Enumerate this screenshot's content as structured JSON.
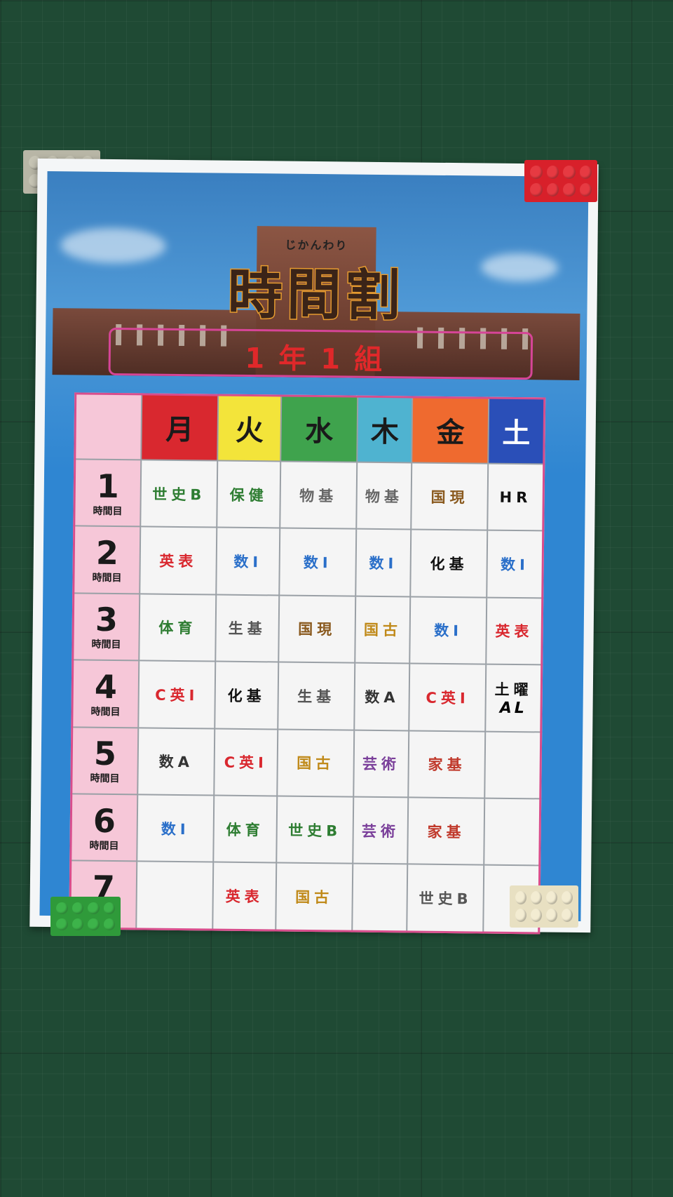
{
  "poster": {
    "hiragana": "じかんわり",
    "title": "時間割",
    "class_label": "1年1組"
  },
  "days": [
    {
      "label": "月",
      "color": "#d9282f",
      "text_color": "#1a1a1a"
    },
    {
      "label": "火",
      "color": "#f3e43a",
      "text_color": "#1a1a1a"
    },
    {
      "label": "水",
      "color": "#3fa34d",
      "text_color": "#1a1a1a"
    },
    {
      "label": "木",
      "color": "#4fb3d0",
      "text_color": "#1a1a1a"
    },
    {
      "label": "金",
      "color": "#ef6a2f",
      "text_color": "#1a1a1a"
    },
    {
      "label": "土",
      "color": "#2a4fb8",
      "text_color": "#ffffff"
    }
  ],
  "period_suffix": "時間目",
  "periods": [
    {
      "num": "1",
      "cells": [
        {
          "text": "世史B",
          "color": "#2e7d32"
        },
        {
          "text": "保健",
          "color": "#2e7d32"
        },
        {
          "text": "物基",
          "color": "#666666"
        },
        {
          "text": "物基",
          "color": "#666666"
        },
        {
          "text": "国現",
          "color": "#8a5a1f"
        },
        {
          "text": "HR",
          "color": "#111111"
        }
      ]
    },
    {
      "num": "2",
      "cells": [
        {
          "text": "英表",
          "color": "#d9282f"
        },
        {
          "text": "数I",
          "color": "#2a6fc9"
        },
        {
          "text": "数I",
          "color": "#2a6fc9"
        },
        {
          "text": "数I",
          "color": "#2a6fc9"
        },
        {
          "text": "化基",
          "color": "#111111"
        },
        {
          "text": "数I",
          "color": "#2a6fc9"
        }
      ]
    },
    {
      "num": "3",
      "cells": [
        {
          "text": "体育",
          "color": "#2e7d32"
        },
        {
          "text": "生基",
          "color": "#555555"
        },
        {
          "text": "国現",
          "color": "#8a5a1f"
        },
        {
          "text": "国古",
          "color": "#c08a1a"
        },
        {
          "text": "数I",
          "color": "#2a6fc9"
        },
        {
          "text": "英表",
          "color": "#d9282f"
        }
      ]
    },
    {
      "num": "4",
      "cells": [
        {
          "text": "C英I",
          "color": "#d9282f"
        },
        {
          "text": "化基",
          "color": "#111111"
        },
        {
          "text": "生基",
          "color": "#555555"
        },
        {
          "text": "数A",
          "color": "#333333"
        },
        {
          "text": "C英I",
          "color": "#d9282f"
        },
        {
          "text": "土曜",
          "color": "#111111",
          "extra": "AL"
        }
      ]
    },
    {
      "num": "5",
      "cells": [
        {
          "text": "数A",
          "color": "#333333"
        },
        {
          "text": "C英I",
          "color": "#d9282f"
        },
        {
          "text": "国古",
          "color": "#c08a1a"
        },
        {
          "text": "芸術",
          "color": "#7a3f9a"
        },
        {
          "text": "家基",
          "color": "#c0392b"
        },
        {
          "text": "",
          "color": "#111111"
        }
      ]
    },
    {
      "num": "6",
      "cells": [
        {
          "text": "数I",
          "color": "#2a6fc9"
        },
        {
          "text": "体育",
          "color": "#2e7d32"
        },
        {
          "text": "世史B",
          "color": "#2e7d32"
        },
        {
          "text": "芸術",
          "color": "#7a3f9a"
        },
        {
          "text": "家基",
          "color": "#c0392b"
        },
        {
          "text": "",
          "color": "#111111"
        }
      ]
    },
    {
      "num": "7",
      "cells": [
        {
          "text": "",
          "color": "#111111"
        },
        {
          "text": "英表",
          "color": "#d9282f"
        },
        {
          "text": "国古",
          "color": "#c08a1a"
        },
        {
          "text": "",
          "color": "#111111"
        },
        {
          "text": "世史B",
          "color": "#555555"
        },
        {
          "text": "",
          "color": "#111111"
        }
      ]
    }
  ],
  "bricks": [
    {
      "name": "gray-brick",
      "color": "#b8b6a6"
    },
    {
      "name": "red-brick",
      "color": "#d8202a"
    },
    {
      "name": "green-brick",
      "color": "#2f9a3a"
    },
    {
      "name": "cream-brick",
      "color": "#e8e0c2"
    }
  ]
}
